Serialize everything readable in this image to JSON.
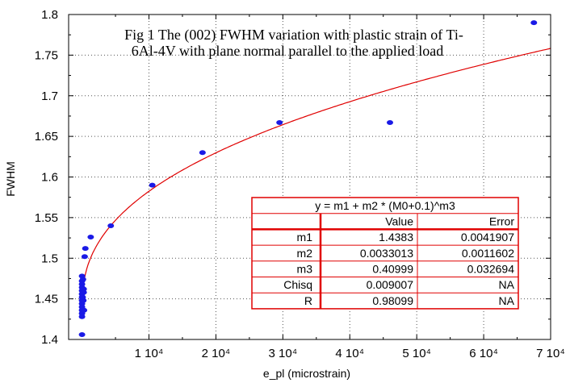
{
  "chart_data": {
    "type": "scatter",
    "title_lines": [
      "Fig 1 The (002) FWHM variation with plastic strain of Ti-",
      "6Al-4V with plane normal parallel to the applied load"
    ],
    "xlabel": "e_pl (microstrain)",
    "ylabel": "FWHM",
    "xlim": [
      -2000,
      70000
    ],
    "ylim": [
      1.4,
      1.8
    ],
    "x_ticks": [
      {
        "value": 10000,
        "label": "1 10⁴"
      },
      {
        "value": 20000,
        "label": "2 10⁴"
      },
      {
        "value": 30000,
        "label": "3 10⁴"
      },
      {
        "value": 40000,
        "label": "4 10⁴"
      },
      {
        "value": 50000,
        "label": "5 10⁴"
      },
      {
        "value": 60000,
        "label": "6 10⁴"
      },
      {
        "value": 70000,
        "label": "7 10⁴"
      }
    ],
    "y_ticks": [
      {
        "value": 1.4,
        "label": "1.4"
      },
      {
        "value": 1.45,
        "label": "1.45"
      },
      {
        "value": 1.5,
        "label": "1.5"
      },
      {
        "value": 1.55,
        "label": "1.55"
      },
      {
        "value": 1.6,
        "label": "1.6"
      },
      {
        "value": 1.65,
        "label": "1.65"
      },
      {
        "value": 1.7,
        "label": "1.7"
      },
      {
        "value": 1.75,
        "label": "1.75"
      },
      {
        "value": 1.8,
        "label": "1.8"
      }
    ],
    "grid": true,
    "points": [
      {
        "x": 0,
        "y": 1.406
      },
      {
        "x": 0,
        "y": 1.428
      },
      {
        "x": 0,
        "y": 1.432
      },
      {
        "x": 0,
        "y": 1.436
      },
      {
        "x": 0,
        "y": 1.44
      },
      {
        "x": 0,
        "y": 1.444
      },
      {
        "x": 0,
        "y": 1.448
      },
      {
        "x": 0,
        "y": 1.452
      },
      {
        "x": 0,
        "y": 1.456
      },
      {
        "x": 0,
        "y": 1.46
      },
      {
        "x": 0,
        "y": 1.464
      },
      {
        "x": 0,
        "y": 1.468
      },
      {
        "x": 0,
        "y": 1.472
      },
      {
        "x": 0,
        "y": 1.478
      },
      {
        "x": 200,
        "y": 1.448
      },
      {
        "x": 250,
        "y": 1.462
      },
      {
        "x": 150,
        "y": 1.474
      },
      {
        "x": 300,
        "y": 1.436
      },
      {
        "x": 250,
        "y": 1.458
      },
      {
        "x": 100,
        "y": 1.452
      },
      {
        "x": 400,
        "y": 1.502
      },
      {
        "x": 500,
        "y": 1.512
      },
      {
        "x": 1300,
        "y": 1.526
      },
      {
        "x": 4300,
        "y": 1.54
      },
      {
        "x": 10500,
        "y": 1.59
      },
      {
        "x": 18000,
        "y": 1.63
      },
      {
        "x": 29500,
        "y": 1.667
      },
      {
        "x": 46000,
        "y": 1.667
      },
      {
        "x": 67500,
        "y": 1.79
      }
    ],
    "fit": {
      "m1": 1.4383,
      "m2": 0.0033013,
      "M0_offset": 0.1,
      "m3": 0.40999
    },
    "colors": {
      "points": "#1a1ae6",
      "fit_line": "#e00000",
      "grid": "#555555"
    },
    "fit_table": {
      "equation": "y = m1 + m2 * (M0+0.1)^m3",
      "headers": [
        "",
        "Value",
        "Error"
      ],
      "rows": [
        [
          "m1",
          "1.4383",
          "0.0041907"
        ],
        [
          "m2",
          "0.0033013",
          "0.0011602"
        ],
        [
          "m3",
          "0.40999",
          "0.032694"
        ],
        [
          "Chisq",
          "0.009007",
          "NA"
        ],
        [
          "R",
          "0.98099",
          "NA"
        ]
      ]
    }
  }
}
